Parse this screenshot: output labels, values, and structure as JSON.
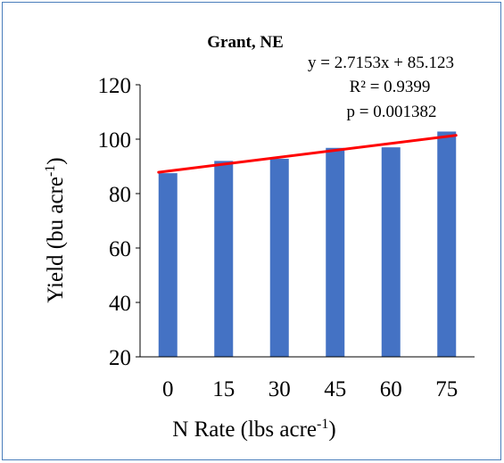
{
  "chart_data": {
    "type": "bar",
    "title": "Grant, NE",
    "categories": [
      "0",
      "15",
      "30",
      "45",
      "60",
      "75"
    ],
    "values": [
      87.5,
      92,
      92.8,
      96.8,
      97,
      102.8
    ],
    "ylim": [
      20,
      120
    ],
    "yticks": [
      "20",
      "40",
      "60",
      "80",
      "100",
      "120"
    ],
    "ylabel": {
      "main": "Yield (bu acre",
      "sup": "-1",
      "end": ")"
    },
    "xlabel": {
      "main": "N Rate (lbs acre",
      "sup": "-1",
      "end": ")"
    },
    "trendline": {
      "slope": 2.7153,
      "intercept": 85.123
    },
    "annotations": {
      "equation": "y = 2.7153x + 85.123",
      "r_squared": "R² = 0.9399",
      "p_value": "p = 0.001382"
    },
    "grid": false,
    "legend": "none"
  },
  "colors": {
    "bar": "#4472c4",
    "trendline": "#ff0000",
    "axis": "#000000",
    "border": "#4a7ebb"
  }
}
